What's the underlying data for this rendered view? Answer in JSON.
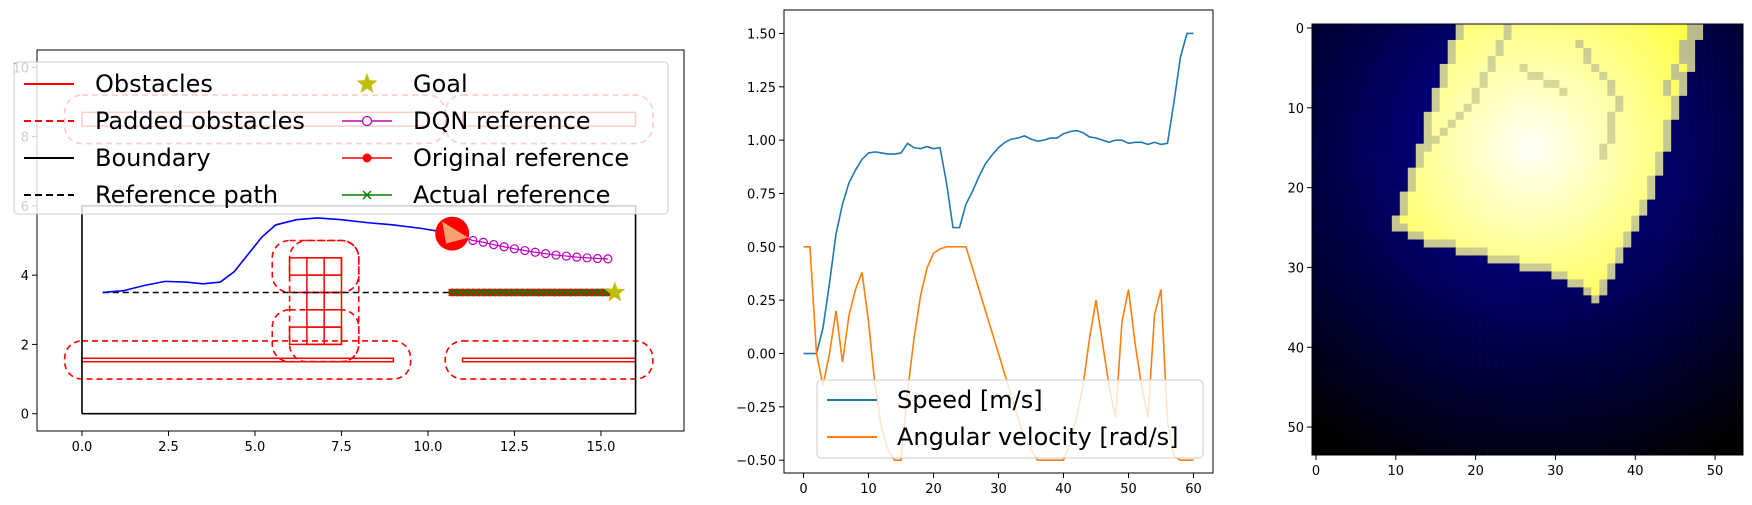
{
  "chart_data": [
    {
      "type": "line",
      "panel": "map",
      "xlim": [
        -1.3,
        17.4
      ],
      "ylim": [
        -0.5,
        10.5
      ],
      "xticks": [
        "0.0",
        "2.5",
        "5.0",
        "7.5",
        "10.0",
        "12.5",
        "15.0"
      ],
      "yticks": [
        "0",
        "2",
        "4",
        "6",
        "8",
        "10"
      ],
      "legend": {
        "placement": "top-left",
        "entries": [
          {
            "label": "Obstacles",
            "color": "#ff0000",
            "style": "solid"
          },
          {
            "label": "Padded obstacles",
            "color": "#ff0000",
            "style": "dashed"
          },
          {
            "label": "Boundary",
            "color": "#000000",
            "style": "solid"
          },
          {
            "label": "Reference path",
            "color": "#000000",
            "style": "dashed"
          },
          {
            "label": "Goal",
            "color": "#bfbf00",
            "style": "star-marker"
          },
          {
            "label": "DQN reference",
            "color": "#bf00bf",
            "style": "open-circle-marker"
          },
          {
            "label": "Original reference",
            "color": "#ff0000",
            "style": "filled-circle-marker"
          },
          {
            "label": "Actual reference",
            "color": "#008000",
            "style": "x-marker"
          }
        ]
      },
      "boundary": [
        [
          0,
          0
        ],
        [
          16,
          0
        ],
        [
          16,
          6
        ],
        [
          0,
          6
        ],
        [
          0,
          0
        ]
      ],
      "obstacles": [
        {
          "x0": 0.0,
          "x1": 9.0,
          "y0": 1.5,
          "y1": 1.6
        },
        {
          "x0": 11.0,
          "x1": 16.0,
          "y0": 1.5,
          "y1": 1.6
        },
        {
          "x0": 6.0,
          "x1": 7.5,
          "y0": 4.0,
          "y1": 4.5
        },
        {
          "x0": 6.5,
          "x1": 7.5,
          "y0": 2.0,
          "y1": 4.5
        },
        {
          "x0": 6.0,
          "x1": 7.5,
          "y0": 2.0,
          "y1": 2.5
        },
        {
          "x0": 0.0,
          "x1": 10.0,
          "y0": 8.3,
          "y1": 8.7
        },
        {
          "x0": 11.0,
          "x1": 16.0,
          "y0": 8.3,
          "y1": 8.7
        }
      ],
      "padded_obstacles": [
        {
          "x0": 0.0,
          "x1": 9.0,
          "y0": 1.5,
          "y1": 1.6,
          "pad": 0.5
        },
        {
          "x0": 11.0,
          "x1": 16.0,
          "y0": 1.5,
          "y1": 1.6,
          "pad": 0.5
        },
        {
          "x0": 6.0,
          "x1": 7.5,
          "y0": 4.0,
          "y1": 4.5,
          "pad": 0.5
        },
        {
          "x0": 6.5,
          "x1": 7.5,
          "y0": 2.0,
          "y1": 4.5,
          "pad": 0.5
        },
        {
          "x0": 6.0,
          "x1": 7.5,
          "y0": 2.0,
          "y1": 2.5,
          "pad": 0.5
        },
        {
          "x0": 0.0,
          "x1": 10.0,
          "y0": 8.3,
          "y1": 8.7,
          "pad": 0.5
        },
        {
          "x0": 11.0,
          "x1": 16.0,
          "y0": 8.3,
          "y1": 8.7,
          "pad": 0.5
        }
      ],
      "reference_path": [
        [
          0.6,
          3.5
        ],
        [
          15.4,
          3.5
        ]
      ],
      "trajectory": [
        [
          0.6,
          3.5
        ],
        [
          1.2,
          3.55
        ],
        [
          1.8,
          3.7
        ],
        [
          2.4,
          3.82
        ],
        [
          3.0,
          3.8
        ],
        [
          3.5,
          3.75
        ],
        [
          4.0,
          3.8
        ],
        [
          4.4,
          4.1
        ],
        [
          4.8,
          4.6
        ],
        [
          5.2,
          5.1
        ],
        [
          5.6,
          5.45
        ],
        [
          6.2,
          5.6
        ],
        [
          6.8,
          5.65
        ],
        [
          7.5,
          5.6
        ],
        [
          8.2,
          5.52
        ],
        [
          9.0,
          5.45
        ],
        [
          9.8,
          5.35
        ],
        [
          10.4,
          5.25
        ],
        [
          10.7,
          5.2
        ]
      ],
      "vehicle": {
        "x": 10.7,
        "y": 5.2
      },
      "goal": {
        "x": 15.4,
        "y": 3.5
      },
      "dqn_reference": [
        [
          11.0,
          5.1
        ],
        [
          11.3,
          5.0
        ],
        [
          11.6,
          4.95
        ],
        [
          11.9,
          4.88
        ],
        [
          12.2,
          4.82
        ],
        [
          12.5,
          4.76
        ],
        [
          12.8,
          4.71
        ],
        [
          13.1,
          4.66
        ],
        [
          13.4,
          4.62
        ],
        [
          13.7,
          4.58
        ],
        [
          14.0,
          4.55
        ],
        [
          14.3,
          4.52
        ],
        [
          14.6,
          4.5
        ],
        [
          14.9,
          4.48
        ],
        [
          15.2,
          4.47
        ]
      ],
      "original_reference": {
        "x_start": 10.7,
        "x_end": 15.2,
        "y": 3.5,
        "count": 30
      },
      "actual_reference": {
        "x_start": 10.7,
        "x_end": 15.2,
        "y": 3.5,
        "count": 30
      }
    },
    {
      "type": "line",
      "panel": "timeseries",
      "xlim": [
        -3,
        63
      ],
      "ylim": [
        -0.56,
        1.61
      ],
      "xticks": [
        "0",
        "10",
        "20",
        "30",
        "40",
        "50",
        "60"
      ],
      "yticks": [
        "−0.50",
        "−0.25",
        "0.00",
        "0.25",
        "0.50",
        "0.75",
        "1.00",
        "1.25",
        "1.50"
      ],
      "legend": {
        "placement": "lower-center"
      },
      "x": [
        0,
        1,
        2,
        3,
        4,
        5,
        6,
        7,
        8,
        9,
        10,
        11,
        12,
        13,
        14,
        15,
        16,
        17,
        18,
        19,
        20,
        21,
        22,
        23,
        24,
        25,
        26,
        27,
        28,
        29,
        30,
        31,
        32,
        33,
        34,
        35,
        36,
        37,
        38,
        39,
        40,
        41,
        42,
        43,
        44,
        45,
        46,
        47,
        48,
        49,
        50,
        51,
        52,
        53,
        54,
        55,
        56,
        57,
        58,
        59,
        60
      ],
      "series": [
        {
          "name": "Speed [m/s]",
          "color": "#1f77b4",
          "values": [
            0.0,
            0.0,
            0.0,
            0.12,
            0.33,
            0.56,
            0.7,
            0.8,
            0.86,
            0.91,
            0.94,
            0.945,
            0.94,
            0.935,
            0.935,
            0.94,
            0.985,
            0.965,
            0.96,
            0.97,
            0.96,
            0.965,
            0.8,
            0.59,
            0.59,
            0.7,
            0.76,
            0.83,
            0.89,
            0.93,
            0.965,
            0.99,
            1.005,
            1.01,
            1.02,
            1.005,
            0.995,
            1.0,
            1.01,
            1.01,
            1.03,
            1.04,
            1.045,
            1.035,
            1.015,
            1.01,
            1.0,
            0.99,
            1.0,
            1.0,
            0.985,
            0.99,
            0.99,
            0.98,
            0.99,
            0.98,
            0.985,
            1.18,
            1.39,
            1.5,
            1.5
          ]
        },
        {
          "name": "Angular velocity [rad/s]",
          "color": "#ff7f0e",
          "values": [
            0.5,
            0.5,
            0.0,
            -0.15,
            0.0,
            0.2,
            -0.04,
            0.18,
            0.3,
            0.38,
            0.15,
            -0.15,
            -0.35,
            -0.45,
            -0.5,
            -0.5,
            -0.18,
            0.07,
            0.27,
            0.4,
            0.47,
            0.49,
            0.5,
            0.5,
            0.5,
            0.5,
            0.4,
            0.3,
            0.2,
            0.1,
            0.0,
            -0.1,
            -0.2,
            -0.3,
            -0.4,
            -0.45,
            -0.5,
            -0.5,
            -0.5,
            -0.5,
            -0.5,
            -0.42,
            -0.3,
            -0.15,
            0.07,
            0.25,
            0.05,
            -0.15,
            -0.3,
            0.15,
            0.3,
            0.05,
            -0.15,
            -0.3,
            0.18,
            0.3,
            -0.32,
            -0.48,
            -0.5,
            -0.5,
            -0.5
          ]
        }
      ]
    },
    {
      "type": "heatmap",
      "panel": "grid-map",
      "xlim": [
        -0.5,
        53.5
      ],
      "ylim": [
        53.5,
        -0.5
      ],
      "xticks": [
        "0",
        "10",
        "20",
        "30",
        "40",
        "50"
      ],
      "yticks": [
        "0",
        "10",
        "20",
        "30",
        "40",
        "50"
      ],
      "grid_size": 54,
      "colormap": "gist_stern-like blue-yellow",
      "bright_center": {
        "col": 27,
        "row": 15
      }
    }
  ]
}
